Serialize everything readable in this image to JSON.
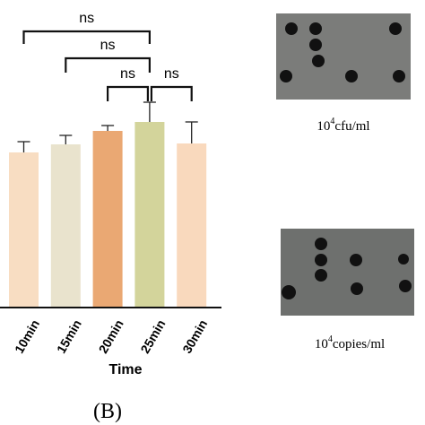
{
  "chart_data": {
    "type": "bar",
    "x_label": "Time",
    "caption": "(B)",
    "categories": [
      "10min",
      "15min",
      "20min",
      "25min",
      "30min"
    ],
    "values": [
      173,
      182,
      197,
      207,
      183
    ],
    "errors": [
      12,
      10,
      6,
      22,
      24
    ],
    "colors": [
      "#f8ddc2",
      "#e9e3cd",
      "#eaa873",
      "#d3d49b",
      "#f9d9bd"
    ],
    "ylim": [
      0,
      343
    ],
    "comparisons": [
      {
        "from": 0,
        "to": 3,
        "label": "ns"
      },
      {
        "from": 1,
        "to": 3,
        "label": "ns"
      },
      {
        "from": 2,
        "to": 3,
        "label": "ns"
      },
      {
        "from": 3,
        "to": 4,
        "label": "ns"
      }
    ]
  },
  "panels": [
    {
      "label_base": "10",
      "label_exp": "4",
      "label_unit": "cfu/ml"
    },
    {
      "label_base": "10",
      "label_exp": "4",
      "label_unit": "copies/ml"
    }
  ]
}
